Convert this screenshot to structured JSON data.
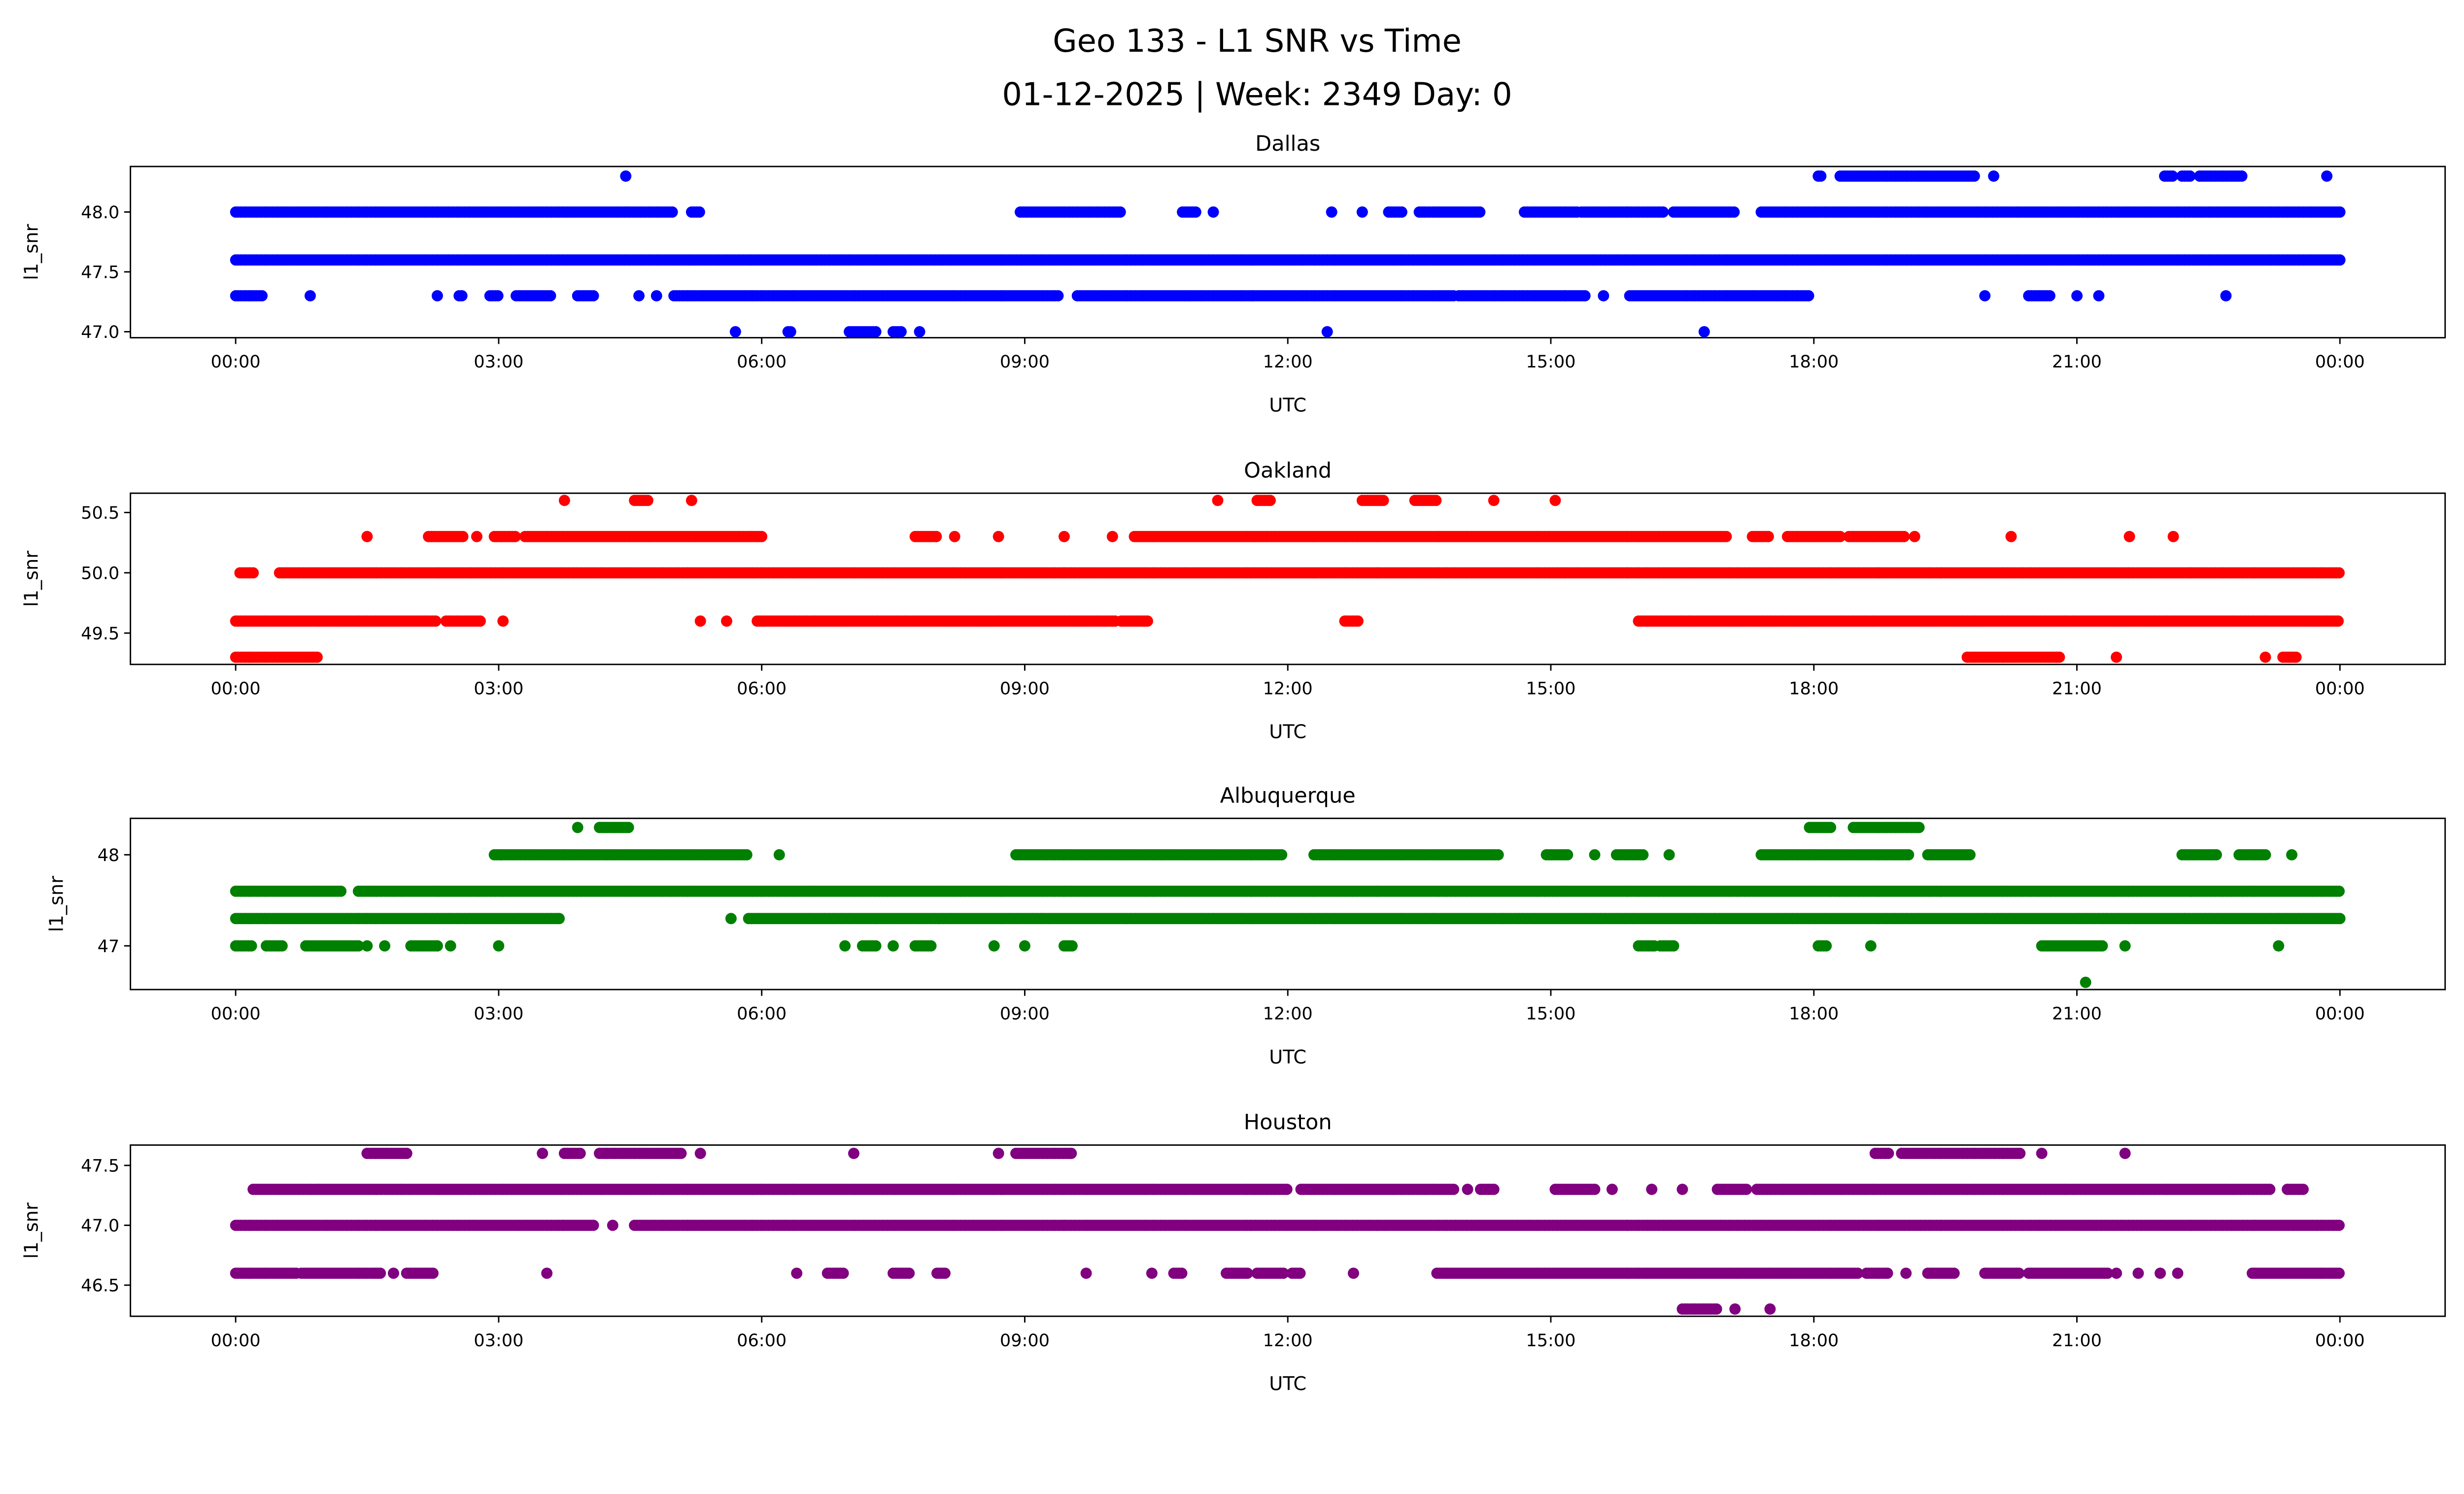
{
  "title_line1": "Geo 133 - L1 SNR vs Time",
  "title_line2": "01-12-2025 | Week: 2349 Day: 0",
  "chart_data": [
    {
      "type": "scatter",
      "title": "Dallas",
      "xlabel": "UTC",
      "ylabel": "l1_snr",
      "color": "#0000ff",
      "xlim_hours": [
        -1.2,
        25.2
      ],
      "xticks": [
        "00:00",
        "03:00",
        "06:00",
        "09:00",
        "12:00",
        "15:00",
        "18:00",
        "21:00",
        "00:00"
      ],
      "ylim": [
        46.95,
        48.38
      ],
      "yticks": [
        {
          "value": 47.0,
          "label": "47.0"
        },
        {
          "value": 47.5,
          "label": "47.5"
        },
        {
          "value": 48.0,
          "label": "48.0"
        }
      ],
      "series": [
        {
          "level": 48.3,
          "runs": [
            [
              4.45,
              4.45
            ],
            [
              18.05,
              18.1
            ],
            [
              18.3,
              19.85
            ],
            [
              20.05,
              20.05
            ],
            [
              22.0,
              22.1
            ],
            [
              22.2,
              22.3
            ],
            [
              22.4,
              22.9
            ],
            [
              23.85,
              23.85
            ]
          ]
        },
        {
          "level": 48.0,
          "runs": [
            [
              0,
              5.0
            ],
            [
              5.2,
              5.3
            ],
            [
              8.95,
              10.1
            ],
            [
              10.8,
              10.95
            ],
            [
              11.15,
              11.15
            ],
            [
              12.5,
              12.5
            ],
            [
              12.85,
              12.85
            ],
            [
              13.15,
              13.3
            ],
            [
              13.5,
              14.2
            ],
            [
              14.7,
              15.3
            ],
            [
              15.35,
              16.3
            ],
            [
              16.4,
              17.1
            ],
            [
              17.4,
              24
            ]
          ]
        },
        {
          "level": 47.6,
          "runs": [
            [
              0,
              24
            ]
          ]
        },
        {
          "level": 47.3,
          "runs": [
            [
              0,
              0.3
            ],
            [
              0.85,
              0.85
            ],
            [
              2.3,
              2.3
            ],
            [
              2.55,
              2.6
            ],
            [
              2.9,
              3.0
            ],
            [
              3.2,
              3.6
            ],
            [
              3.9,
              4.1
            ],
            [
              4.6,
              4.6
            ],
            [
              4.8,
              4.8
            ],
            [
              5.0,
              9.4
            ],
            [
              9.6,
              13.9
            ],
            [
              13.95,
              15.4
            ],
            [
              15.6,
              15.6
            ],
            [
              15.9,
              17.95
            ],
            [
              19.95,
              19.95
            ],
            [
              20.45,
              20.7
            ],
            [
              21.0,
              21.0
            ],
            [
              21.25,
              21.25
            ],
            [
              22.7,
              22.7
            ]
          ]
        },
        {
          "level": 47.0,
          "runs": [
            [
              5.7,
              5.7
            ],
            [
              6.3,
              6.35
            ],
            [
              7.0,
              7.3
            ],
            [
              7.5,
              7.6
            ],
            [
              7.8,
              7.8
            ],
            [
              12.45,
              12.45
            ],
            [
              16.75,
              16.75
            ]
          ]
        }
      ]
    },
    {
      "type": "scatter",
      "title": "Oakland",
      "xlabel": "UTC",
      "ylabel": "l1_snr",
      "color": "#ff0000",
      "xlim_hours": [
        -1.2,
        25.2
      ],
      "xticks": [
        "00:00",
        "03:00",
        "06:00",
        "09:00",
        "12:00",
        "15:00",
        "18:00",
        "21:00",
        "00:00"
      ],
      "ylim": [
        49.24,
        50.66
      ],
      "yticks": [
        {
          "value": 49.5,
          "label": "49.5"
        },
        {
          "value": 50.0,
          "label": "50.0"
        },
        {
          "value": 50.5,
          "label": "50.5"
        }
      ],
      "series": [
        {
          "level": 50.6,
          "runs": [
            [
              3.75,
              3.75
            ],
            [
              4.55,
              4.7
            ],
            [
              5.2,
              5.2
            ],
            [
              11.2,
              11.2
            ],
            [
              11.65,
              11.8
            ],
            [
              12.85,
              13.1
            ],
            [
              13.45,
              13.7
            ],
            [
              14.35,
              14.35
            ],
            [
              15.05,
              15.05
            ]
          ]
        },
        {
          "level": 50.3,
          "runs": [
            [
              1.5,
              1.5
            ],
            [
              2.2,
              2.6
            ],
            [
              2.75,
              2.75
            ],
            [
              2.95,
              3.2
            ],
            [
              3.3,
              6.0
            ],
            [
              7.75,
              8.0
            ],
            [
              8.2,
              8.2
            ],
            [
              8.7,
              8.7
            ],
            [
              9.45,
              9.45
            ],
            [
              10.0,
              10.0
            ],
            [
              10.25,
              17.0
            ],
            [
              17.3,
              17.5
            ],
            [
              17.7,
              18.3
            ],
            [
              18.4,
              19.05
            ],
            [
              19.15,
              19.15
            ],
            [
              20.25,
              20.25
            ],
            [
              21.6,
              21.6
            ],
            [
              22.1,
              22.1
            ]
          ]
        },
        {
          "level": 50.0,
          "runs": [
            [
              0.05,
              0.2
            ],
            [
              0.5,
              24
            ]
          ]
        },
        {
          "level": 49.6,
          "runs": [
            [
              0,
              2.3
            ],
            [
              2.4,
              2.8
            ],
            [
              3.05,
              3.05
            ],
            [
              5.3,
              5.3
            ],
            [
              5.6,
              5.6
            ],
            [
              5.95,
              10.05
            ],
            [
              10.1,
              10.4
            ],
            [
              12.65,
              12.8
            ],
            [
              16.0,
              24
            ]
          ]
        },
        {
          "level": 49.3,
          "runs": [
            [
              0,
              0.95
            ],
            [
              19.75,
              20.8
            ],
            [
              21.45,
              21.45
            ],
            [
              23.15,
              23.15
            ],
            [
              23.35,
              23.5
            ]
          ]
        }
      ]
    },
    {
      "type": "scatter",
      "title": "Albuquerque",
      "xlabel": "UTC",
      "ylabel": "l1_snr",
      "color": "#008000",
      "xlim_hours": [
        -1.2,
        25.2
      ],
      "xticks": [
        "00:00",
        "03:00",
        "06:00",
        "09:00",
        "12:00",
        "15:00",
        "18:00",
        "21:00",
        "00:00"
      ],
      "ylim": [
        46.52,
        48.4
      ],
      "yticks": [
        {
          "value": 47,
          "label": "47"
        },
        {
          "value": 48,
          "label": "48"
        }
      ],
      "series": [
        {
          "level": 48.3,
          "runs": [
            [
              3.9,
              3.9
            ],
            [
              4.15,
              4.5
            ],
            [
              17.95,
              18.2
            ],
            [
              18.45,
              19.2
            ]
          ]
        },
        {
          "level": 48.0,
          "runs": [
            [
              2.95,
              5.85
            ],
            [
              6.2,
              6.2
            ],
            [
              8.9,
              11.95
            ],
            [
              12.3,
              14.4
            ],
            [
              14.95,
              15.2
            ],
            [
              15.5,
              15.5
            ],
            [
              15.75,
              16.05
            ],
            [
              16.35,
              16.35
            ],
            [
              17.4,
              19.1
            ],
            [
              19.3,
              19.8
            ],
            [
              22.2,
              22.6
            ],
            [
              22.85,
              23.15
            ],
            [
              23.45,
              23.45
            ]
          ]
        },
        {
          "level": 47.6,
          "runs": [
            [
              0,
              1.2
            ],
            [
              1.4,
              24
            ]
          ]
        },
        {
          "level": 47.3,
          "runs": [
            [
              0,
              3.7
            ],
            [
              5.65,
              5.65
            ],
            [
              5.85,
              24
            ]
          ]
        },
        {
          "level": 47.0,
          "runs": [
            [
              0,
              0.2
            ],
            [
              0.35,
              0.55
            ],
            [
              0.8,
              1.4
            ],
            [
              1.5,
              1.5
            ],
            [
              1.7,
              1.7
            ],
            [
              2.0,
              2.3
            ],
            [
              2.45,
              2.45
            ],
            [
              3.0,
              3.0
            ],
            [
              6.95,
              6.95
            ],
            [
              7.15,
              7.3
            ],
            [
              7.5,
              7.5
            ],
            [
              7.75,
              7.95
            ],
            [
              8.65,
              8.65
            ],
            [
              9.0,
              9.0
            ],
            [
              9.45,
              9.55
            ],
            [
              16.0,
              16.2
            ],
            [
              16.25,
              16.4
            ],
            [
              18.05,
              18.15
            ],
            [
              18.65,
              18.65
            ],
            [
              20.6,
              21.3
            ],
            [
              21.55,
              21.55
            ],
            [
              23.3,
              23.3
            ]
          ]
        },
        {
          "level": 46.6,
          "runs": [
            [
              21.1,
              21.1
            ]
          ]
        }
      ]
    },
    {
      "type": "scatter",
      "title": "Houston",
      "xlabel": "UTC",
      "ylabel": "l1_snr",
      "color": "#800080",
      "xlim_hours": [
        -1.2,
        25.2
      ],
      "xticks": [
        "00:00",
        "03:00",
        "06:00",
        "09:00",
        "12:00",
        "15:00",
        "18:00",
        "21:00",
        "00:00"
      ],
      "ylim": [
        46.24,
        47.67
      ],
      "yticks": [
        {
          "value": 46.5,
          "label": "46.5"
        },
        {
          "value": 47.0,
          "label": "47.0"
        },
        {
          "value": 47.5,
          "label": "47.5"
        }
      ],
      "series": [
        {
          "level": 47.6,
          "runs": [
            [
              1.5,
              1.95
            ],
            [
              3.5,
              3.5
            ],
            [
              3.75,
              3.95
            ],
            [
              4.15,
              5.1
            ],
            [
              5.3,
              5.3
            ],
            [
              7.05,
              7.05
            ],
            [
              8.7,
              8.7
            ],
            [
              8.9,
              9.55
            ],
            [
              18.7,
              18.85
            ],
            [
              19.0,
              20.35
            ],
            [
              20.6,
              20.6
            ],
            [
              21.55,
              21.55
            ]
          ]
        },
        {
          "level": 47.3,
          "runs": [
            [
              0.2,
              12.0
            ],
            [
              12.15,
              13.9
            ],
            [
              14.05,
              14.05
            ],
            [
              14.2,
              14.35
            ],
            [
              15.05,
              15.5
            ],
            [
              15.7,
              15.7
            ],
            [
              16.15,
              16.15
            ],
            [
              16.5,
              16.5
            ],
            [
              16.9,
              17.25
            ],
            [
              17.35,
              23.2
            ],
            [
              23.4,
              23.6
            ]
          ]
        },
        {
          "level": 47.0,
          "runs": [
            [
              0,
              4.1
            ],
            [
              4.3,
              4.3
            ],
            [
              4.55,
              24
            ]
          ]
        },
        {
          "level": 46.6,
          "runs": [
            [
              0,
              0.7
            ],
            [
              0.75,
              1.65
            ],
            [
              1.8,
              1.8
            ],
            [
              1.95,
              2.25
            ],
            [
              3.55,
              3.55
            ],
            [
              6.4,
              6.4
            ],
            [
              6.75,
              6.95
            ],
            [
              7.5,
              7.7
            ],
            [
              8.0,
              8.1
            ],
            [
              9.7,
              9.7
            ],
            [
              10.45,
              10.45
            ],
            [
              10.7,
              10.8
            ],
            [
              11.3,
              11.55
            ],
            [
              11.65,
              11.95
            ],
            [
              12.05,
              12.15
            ],
            [
              12.75,
              12.75
            ],
            [
              13.7,
              18.5
            ],
            [
              18.6,
              18.85
            ],
            [
              19.05,
              19.05
            ],
            [
              19.3,
              19.6
            ],
            [
              19.95,
              20.35
            ],
            [
              20.45,
              21.35
            ],
            [
              21.45,
              21.45
            ],
            [
              21.7,
              21.7
            ],
            [
              21.95,
              21.95
            ],
            [
              22.15,
              22.15
            ],
            [
              23.0,
              24
            ]
          ]
        },
        {
          "level": 46.3,
          "runs": [
            [
              16.5,
              16.9
            ],
            [
              17.1,
              17.1
            ],
            [
              17.5,
              17.5
            ]
          ]
        }
      ]
    }
  ]
}
